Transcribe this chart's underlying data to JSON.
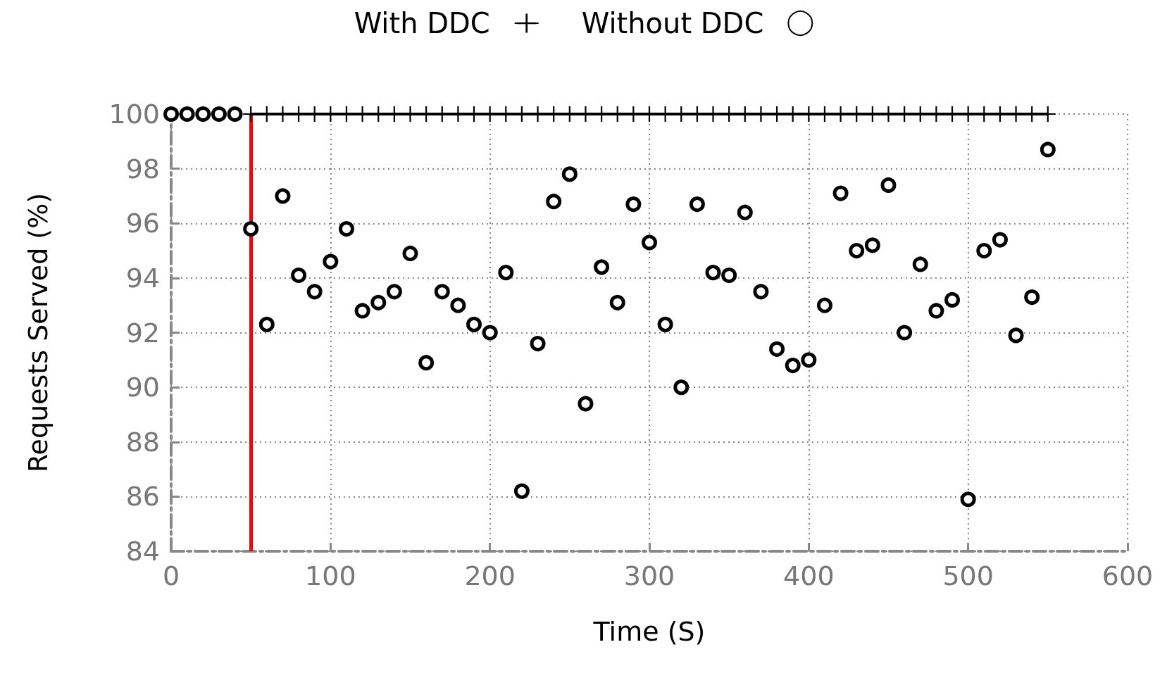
{
  "chart_data": {
    "type": "scatter",
    "xlabel": "Time (S)",
    "ylabel": "Requests Served (%)",
    "xlim": [
      0,
      600
    ],
    "xticks": [
      0,
      100,
      200,
      300,
      400,
      500,
      600
    ],
    "ylim": [
      84,
      100
    ],
    "yticks": [
      84,
      86,
      88,
      90,
      92,
      94,
      96,
      98,
      100
    ],
    "grid": true,
    "legend": "top",
    "series": [
      {
        "name": "With DDC",
        "type": "line",
        "marker": "cross",
        "color": "#000000",
        "x": [
          50,
          60,
          70,
          80,
          90,
          100,
          110,
          120,
          130,
          140,
          150,
          160,
          170,
          180,
          190,
          200,
          210,
          220,
          230,
          240,
          250,
          260,
          270,
          280,
          290,
          300,
          310,
          320,
          330,
          340,
          350,
          360,
          370,
          380,
          390,
          400,
          410,
          420,
          430,
          440,
          450,
          460,
          470,
          480,
          490,
          500,
          510,
          520,
          530,
          540,
          550
        ],
        "values": [
          100,
          100,
          100,
          100,
          100,
          100,
          100,
          100,
          100,
          100,
          100,
          100,
          100,
          100,
          100,
          100,
          100,
          100,
          100,
          100,
          100,
          100,
          100,
          100,
          100,
          100,
          100,
          100,
          100,
          100,
          100,
          100,
          100,
          100,
          100,
          100,
          100,
          100,
          100,
          100,
          100,
          100,
          100,
          100,
          100,
          100,
          100,
          100,
          100,
          100,
          100
        ]
      },
      {
        "name": "Without DDC",
        "type": "scatter",
        "marker": "circle",
        "color": "#000000",
        "x": [
          0,
          10,
          20,
          30,
          40,
          50,
          60,
          70,
          80,
          90,
          100,
          110,
          120,
          130,
          140,
          150,
          160,
          170,
          180,
          190,
          200,
          210,
          220,
          230,
          240,
          250,
          260,
          270,
          280,
          290,
          300,
          310,
          320,
          330,
          340,
          350,
          360,
          370,
          380,
          390,
          400,
          410,
          420,
          430,
          440,
          450,
          460,
          470,
          480,
          490,
          500,
          510,
          520,
          530,
          540,
          550
        ],
        "values": [
          100,
          100,
          100,
          100,
          100,
          95.8,
          92.3,
          97.0,
          94.1,
          93.5,
          94.6,
          95.8,
          92.8,
          93.1,
          93.5,
          94.9,
          90.9,
          93.5,
          93.0,
          92.3,
          92.0,
          94.2,
          86.2,
          91.6,
          96.8,
          97.8,
          89.4,
          94.4,
          93.1,
          96.7,
          95.3,
          92.3,
          90.0,
          96.7,
          94.2,
          94.1,
          96.4,
          93.5,
          91.4,
          90.8,
          91.0,
          93.0,
          97.1,
          95.0,
          95.2,
          97.4,
          92.0,
          94.5,
          92.8,
          93.2,
          85.9,
          95.0,
          95.4,
          91.9,
          93.3,
          98.7
        ]
      }
    ],
    "ref_lines": [
      {
        "axis": "x",
        "value": 50,
        "color": "#ff0000"
      }
    ]
  }
}
